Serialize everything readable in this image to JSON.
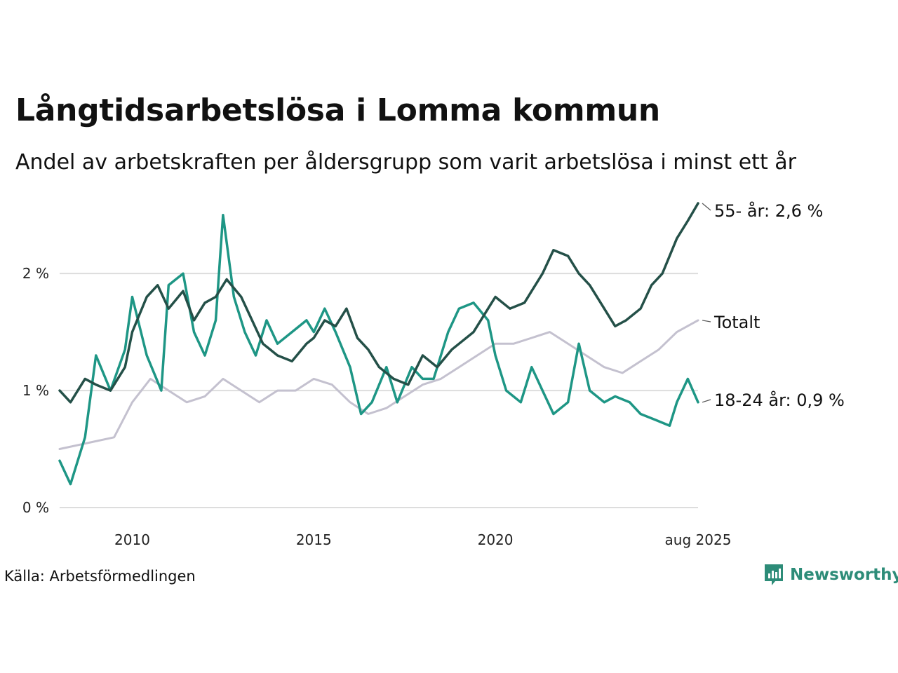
{
  "title": "Långtidsarbetslösa i Lomma kommun",
  "subtitle": "Andel av arbetskraften per åldersgrupp som varit arbetslösa i minst ett år",
  "source": "Källa: Arbetsförmedlingen",
  "brand": "Newsworthy",
  "chart_data": {
    "type": "line",
    "x_range": [
      2008.0,
      2025.583
    ],
    "ylim": [
      0,
      2.6
    ],
    "y_ticks": [
      {
        "value": 0,
        "label": "0 %"
      },
      {
        "value": 1,
        "label": "1 %"
      },
      {
        "value": 2,
        "label": "2 %"
      }
    ],
    "x_ticks": [
      {
        "value": 2010.0,
        "label": "2010"
      },
      {
        "value": 2015.0,
        "label": "2015"
      },
      {
        "value": 2020.0,
        "label": "2020"
      },
      {
        "value": 2025.583,
        "label": "aug 2025"
      }
    ],
    "grid": true,
    "legend": "direct labels at line ends",
    "series": [
      {
        "name": "Totalt",
        "end_label": "Totalt",
        "color": "#c4c1cf",
        "points": [
          [
            2008.0,
            0.5
          ],
          [
            2009.5,
            0.6
          ],
          [
            2010.0,
            0.9
          ],
          [
            2010.5,
            1.1
          ],
          [
            2011.0,
            1.0
          ],
          [
            2011.5,
            0.9
          ],
          [
            2012.0,
            0.95
          ],
          [
            2012.5,
            1.1
          ],
          [
            2013.0,
            1.0
          ],
          [
            2013.5,
            0.9
          ],
          [
            2014.0,
            1.0
          ],
          [
            2014.5,
            1.0
          ],
          [
            2015.0,
            1.1
          ],
          [
            2015.5,
            1.05
          ],
          [
            2016.0,
            0.9
          ],
          [
            2016.5,
            0.8
          ],
          [
            2017.0,
            0.85
          ],
          [
            2017.5,
            0.95
          ],
          [
            2018.0,
            1.05
          ],
          [
            2018.5,
            1.1
          ],
          [
            2019.0,
            1.2
          ],
          [
            2019.5,
            1.3
          ],
          [
            2020.0,
            1.4
          ],
          [
            2020.5,
            1.4
          ],
          [
            2021.0,
            1.45
          ],
          [
            2021.5,
            1.5
          ],
          [
            2022.0,
            1.4
          ],
          [
            2022.5,
            1.3
          ],
          [
            2023.0,
            1.2
          ],
          [
            2023.5,
            1.15
          ],
          [
            2024.0,
            1.25
          ],
          [
            2024.5,
            1.35
          ],
          [
            2025.0,
            1.5
          ],
          [
            2025.583,
            1.6
          ]
        ]
      },
      {
        "name": "18-24 år",
        "end_label": "18-24 år: 0,9 %",
        "color": "#1e9685",
        "points": [
          [
            2008.0,
            0.4
          ],
          [
            2008.3,
            0.2
          ],
          [
            2008.7,
            0.6
          ],
          [
            2009.0,
            1.3
          ],
          [
            2009.4,
            1.0
          ],
          [
            2009.8,
            1.35
          ],
          [
            2010.0,
            1.8
          ],
          [
            2010.4,
            1.3
          ],
          [
            2010.8,
            1.0
          ],
          [
            2011.0,
            1.9
          ],
          [
            2011.4,
            2.0
          ],
          [
            2011.7,
            1.5
          ],
          [
            2012.0,
            1.3
          ],
          [
            2012.3,
            1.6
          ],
          [
            2012.5,
            2.5
          ],
          [
            2012.8,
            1.8
          ],
          [
            2013.1,
            1.5
          ],
          [
            2013.4,
            1.3
          ],
          [
            2013.7,
            1.6
          ],
          [
            2014.0,
            1.4
          ],
          [
            2014.4,
            1.5
          ],
          [
            2014.8,
            1.6
          ],
          [
            2015.0,
            1.5
          ],
          [
            2015.3,
            1.7
          ],
          [
            2015.6,
            1.5
          ],
          [
            2016.0,
            1.2
          ],
          [
            2016.3,
            0.8
          ],
          [
            2016.6,
            0.9
          ],
          [
            2017.0,
            1.2
          ],
          [
            2017.3,
            0.9
          ],
          [
            2017.7,
            1.2
          ],
          [
            2018.0,
            1.1
          ],
          [
            2018.3,
            1.1
          ],
          [
            2018.7,
            1.5
          ],
          [
            2019.0,
            1.7
          ],
          [
            2019.4,
            1.75
          ],
          [
            2019.8,
            1.6
          ],
          [
            2020.0,
            1.3
          ],
          [
            2020.3,
            1.0
          ],
          [
            2020.7,
            0.9
          ],
          [
            2021.0,
            1.2
          ],
          [
            2021.3,
            1.0
          ],
          [
            2021.6,
            0.8
          ],
          [
            2022.0,
            0.9
          ],
          [
            2022.3,
            1.4
          ],
          [
            2022.6,
            1.0
          ],
          [
            2023.0,
            0.9
          ],
          [
            2023.3,
            0.95
          ],
          [
            2023.7,
            0.9
          ],
          [
            2024.0,
            0.8
          ],
          [
            2024.4,
            0.75
          ],
          [
            2024.8,
            0.7
          ],
          [
            2025.0,
            0.9
          ],
          [
            2025.3,
            1.1
          ],
          [
            2025.583,
            0.9
          ]
        ]
      },
      {
        "name": "55- år",
        "end_label": "55- år: 2,6 %",
        "color": "#245048",
        "points": [
          [
            2008.0,
            1.0
          ],
          [
            2008.3,
            0.9
          ],
          [
            2008.7,
            1.1
          ],
          [
            2009.0,
            1.05
          ],
          [
            2009.4,
            1.0
          ],
          [
            2009.8,
            1.2
          ],
          [
            2010.0,
            1.5
          ],
          [
            2010.4,
            1.8
          ],
          [
            2010.7,
            1.9
          ],
          [
            2011.0,
            1.7
          ],
          [
            2011.4,
            1.85
          ],
          [
            2011.7,
            1.6
          ],
          [
            2012.0,
            1.75
          ],
          [
            2012.3,
            1.8
          ],
          [
            2012.6,
            1.95
          ],
          [
            2013.0,
            1.8
          ],
          [
            2013.3,
            1.6
          ],
          [
            2013.6,
            1.4
          ],
          [
            2014.0,
            1.3
          ],
          [
            2014.4,
            1.25
          ],
          [
            2014.8,
            1.4
          ],
          [
            2015.0,
            1.45
          ],
          [
            2015.3,
            1.6
          ],
          [
            2015.6,
            1.55
          ],
          [
            2015.9,
            1.7
          ],
          [
            2016.2,
            1.45
          ],
          [
            2016.5,
            1.35
          ],
          [
            2016.8,
            1.2
          ],
          [
            2017.2,
            1.1
          ],
          [
            2017.6,
            1.05
          ],
          [
            2018.0,
            1.3
          ],
          [
            2018.4,
            1.2
          ],
          [
            2018.8,
            1.35
          ],
          [
            2019.0,
            1.4
          ],
          [
            2019.4,
            1.5
          ],
          [
            2019.8,
            1.7
          ],
          [
            2020.0,
            1.8
          ],
          [
            2020.4,
            1.7
          ],
          [
            2020.8,
            1.75
          ],
          [
            2021.0,
            1.85
          ],
          [
            2021.3,
            2.0
          ],
          [
            2021.6,
            2.2
          ],
          [
            2022.0,
            2.15
          ],
          [
            2022.3,
            2.0
          ],
          [
            2022.6,
            1.9
          ],
          [
            2023.0,
            1.7
          ],
          [
            2023.3,
            1.55
          ],
          [
            2023.6,
            1.6
          ],
          [
            2024.0,
            1.7
          ],
          [
            2024.3,
            1.9
          ],
          [
            2024.6,
            2.0
          ],
          [
            2025.0,
            2.3
          ],
          [
            2025.3,
            2.45
          ],
          [
            2025.583,
            2.6
          ]
        ]
      }
    ]
  }
}
